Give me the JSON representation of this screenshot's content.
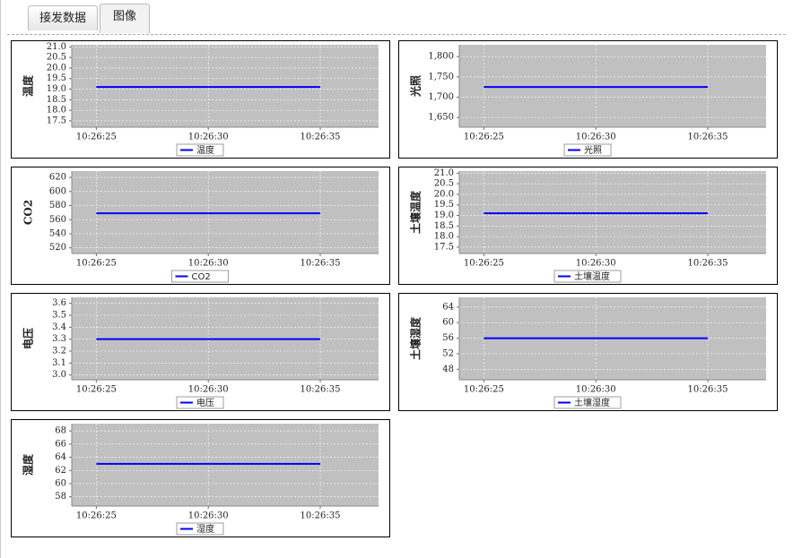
{
  "tabs": [
    "接发数据",
    "图像"
  ],
  "chart_data": [
    {
      "type": "line",
      "ylabel": "温度",
      "x": [
        "10:26:25",
        "10:26:30",
        "10:26:35"
      ],
      "series": [
        {
          "name": "温度",
          "color": "#0000ff",
          "values": [
            19.1,
            19.1,
            19.1
          ]
        }
      ],
      "ylim": [
        17.2,
        21.1
      ],
      "yticks": [
        17.5,
        {
          "value": 18,
          "label": "18.0"
        },
        18.5,
        {
          "value": 19,
          "label": "19.0"
        },
        19.5,
        {
          "value": 20,
          "label": "20.0"
        },
        20.5,
        {
          "value": 21,
          "label": "21.0"
        }
      ],
      "grid": true
    },
    {
      "type": "line",
      "ylabel": "光照",
      "x": [
        "10:26:25",
        "10:26:30",
        "10:26:35"
      ],
      "series": [
        {
          "name": "光照",
          "color": "#0000ff",
          "values": [
            1725,
            1725,
            1725
          ]
        }
      ],
      "ylim": [
        1626,
        1829
      ],
      "yticks": [
        {
          "value": 1650,
          "label": "1,650"
        },
        {
          "value": 1700,
          "label": "1,700"
        },
        {
          "value": 1750,
          "label": "1,750"
        },
        {
          "value": 1800,
          "label": "1,800"
        }
      ],
      "grid": true
    },
    {
      "type": "line",
      "ylabel": "CO2",
      "x": [
        "10:26:25",
        "10:26:30",
        "10:26:35"
      ],
      "series": [
        {
          "name": "CO2",
          "color": "#0000ff",
          "values": [
            569,
            569,
            569
          ]
        }
      ],
      "ylim": [
        512,
        629
      ],
      "yticks": [
        520,
        540,
        560,
        580,
        600,
        620
      ],
      "grid": true
    },
    {
      "type": "line",
      "ylabel": "土壤温度",
      "x": [
        "10:26:25",
        "10:26:30",
        "10:26:35"
      ],
      "series": [
        {
          "name": "土壤温度",
          "color": "#0000ff",
          "values": [
            19.1,
            19.1,
            19.1
          ]
        }
      ],
      "ylim": [
        17.2,
        21.1
      ],
      "yticks": [
        17.5,
        {
          "value": 18,
          "label": "18.0"
        },
        18.5,
        {
          "value": 19,
          "label": "19.0"
        },
        19.5,
        {
          "value": 20,
          "label": "20.0"
        },
        20.5,
        {
          "value": 21,
          "label": "21.0"
        }
      ],
      "grid": true
    },
    {
      "type": "line",
      "ylabel": "电压",
      "x": [
        "10:26:25",
        "10:26:30",
        "10:26:35"
      ],
      "series": [
        {
          "name": "电压",
          "color": "#0000ff",
          "values": [
            3.3,
            3.3,
            3.3
          ]
        }
      ],
      "ylim": [
        2.96,
        3.65
      ],
      "yticks": [
        {
          "value": 3,
          "label": "3.0"
        },
        3.1,
        3.2,
        3.3,
        3.4,
        3.5,
        3.6
      ],
      "grid": true
    },
    {
      "type": "line",
      "ylabel": "土壤湿度",
      "x": [
        "10:26:25",
        "10:26:30",
        "10:26:35"
      ],
      "series": [
        {
          "name": "土壤湿度",
          "color": "#0000ff",
          "values": [
            56,
            56,
            56
          ]
        }
      ],
      "ylim": [
        45.3,
        66.5
      ],
      "yticks": [
        48,
        52,
        56,
        60,
        64
      ],
      "grid": true
    },
    {
      "type": "line",
      "ylabel": "湿度",
      "x": [
        "10:26:25",
        "10:26:30",
        "10:26:35"
      ],
      "series": [
        {
          "name": "湿度",
          "color": "#0000ff",
          "values": [
            63,
            63,
            63
          ]
        }
      ],
      "ylim": [
        56.6,
        69.1
      ],
      "yticks": [
        58,
        60,
        62,
        64,
        66,
        68
      ],
      "grid": true
    }
  ]
}
